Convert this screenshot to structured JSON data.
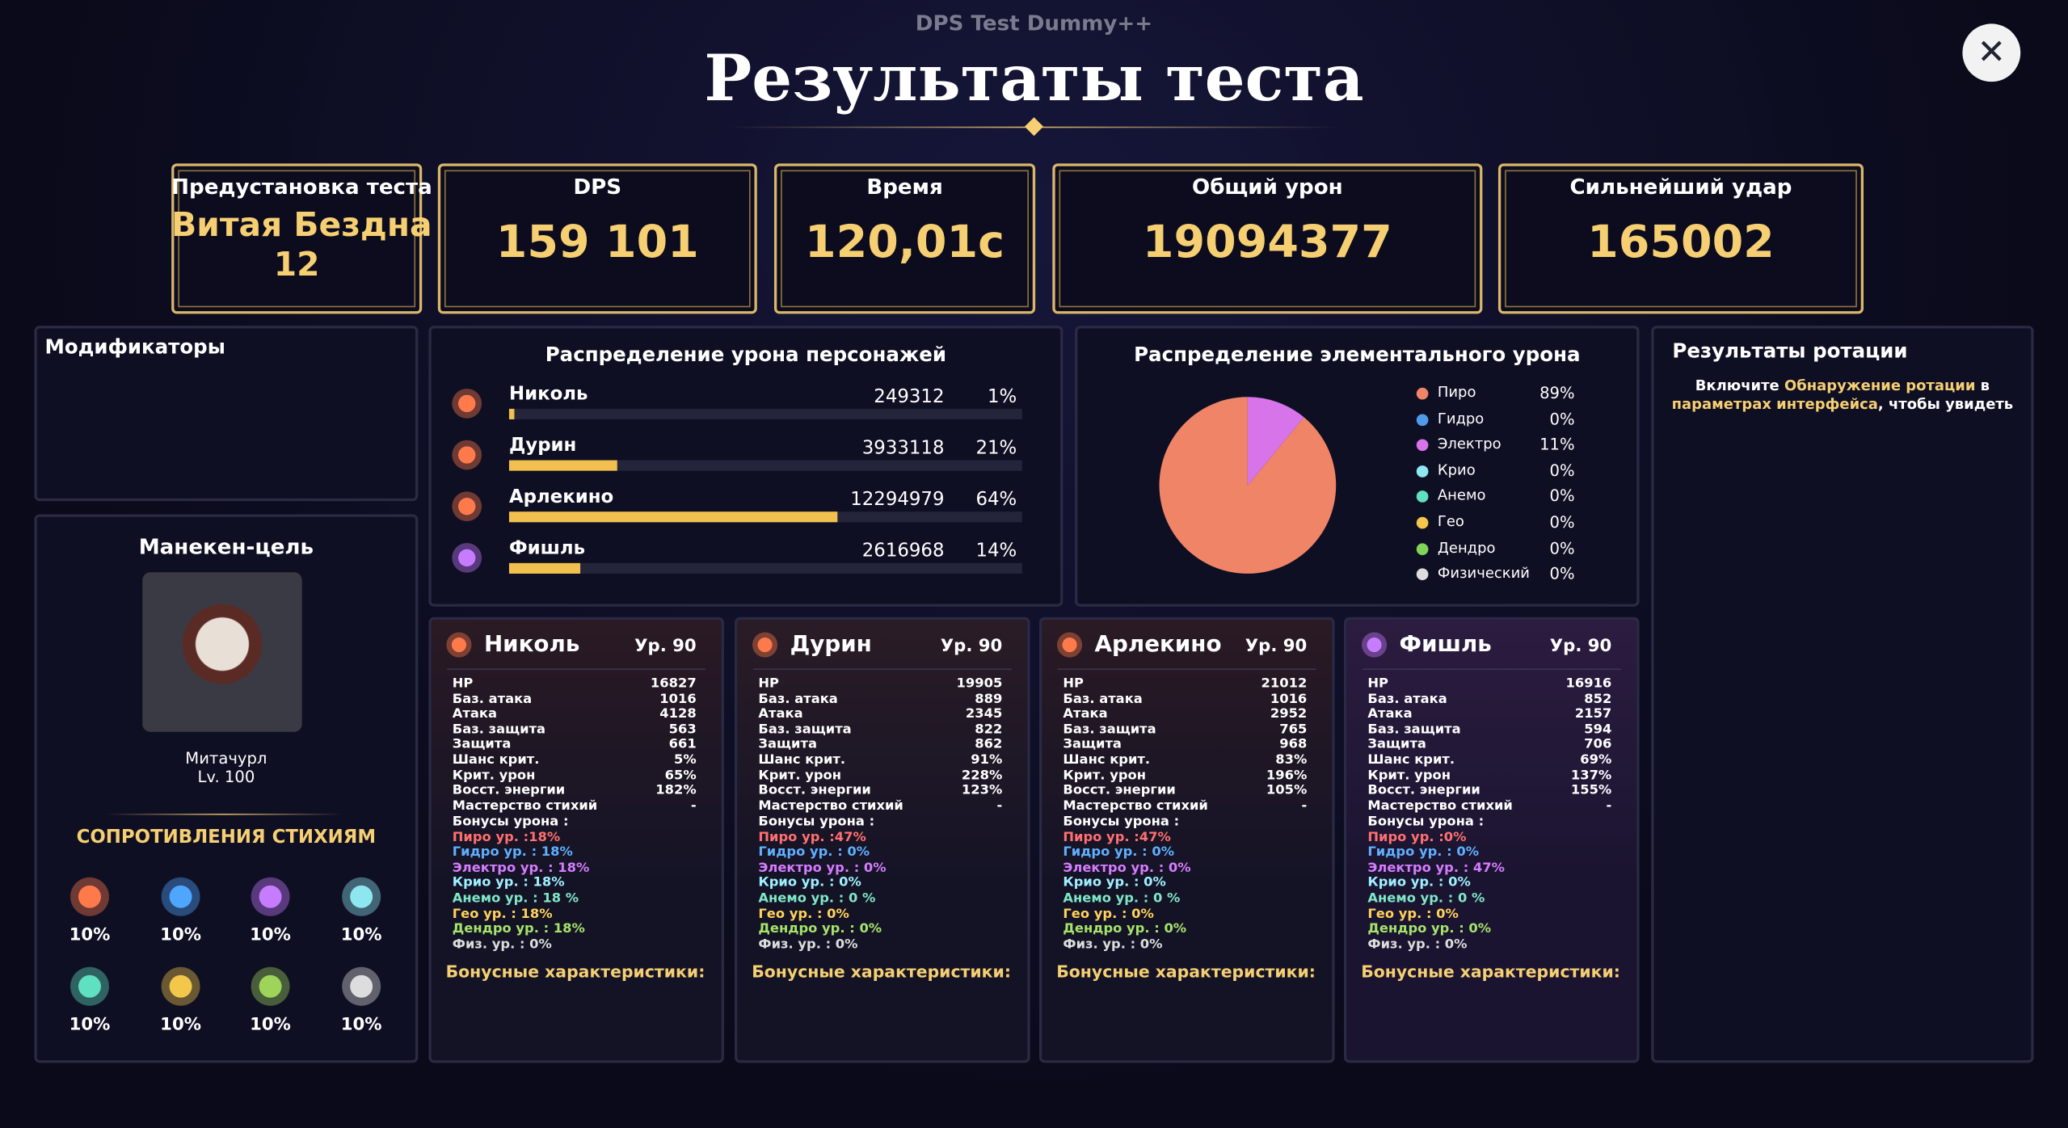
{
  "header": {
    "app": "DPS Test Dummy++",
    "title": "Результаты теста"
  },
  "stats": [
    {
      "label": "Предустановка теста",
      "value": "Витая Бездна",
      "sub": "12"
    },
    {
      "label": "DPS",
      "value": "159 101"
    },
    {
      "label": "Время",
      "value": "120,01с"
    },
    {
      "label": "Общий урон",
      "value": "19094377"
    },
    {
      "label": "Сильнейший удар",
      "value": "165002"
    }
  ],
  "modifiers": {
    "title": "Модификаторы"
  },
  "target": {
    "title": "Манекен-цель",
    "name": "Митачурл",
    "level": "Lv. 100",
    "res_title": "СОПРОТИВЛЕНИЯ СТИХИЯМ",
    "resistances": [
      "10%",
      "10%",
      "10%",
      "10%",
      "10%",
      "10%",
      "10%",
      "10%"
    ]
  },
  "char_damage": {
    "title": "Распределение урона персонажей",
    "rows": [
      {
        "name": "Николь",
        "damage": "249312",
        "share": 1,
        "share_label": "1%"
      },
      {
        "name": "Дурин",
        "damage": "3933118",
        "share": 21,
        "share_label": "21%"
      },
      {
        "name": "Арлекино",
        "damage": "12294979",
        "share": 64,
        "share_label": "64%"
      },
      {
        "name": "Фишль",
        "damage": "2616968",
        "share": 14,
        "share_label": "14%"
      }
    ]
  },
  "element_damage": {
    "title": "Распределение элементального урона",
    "series": [
      {
        "name": "Пиро",
        "color": "#ef8466",
        "value": 89,
        "label": "89%"
      },
      {
        "name": "Гидро",
        "color": "#4f9be8",
        "value": 0,
        "label": "0%"
      },
      {
        "name": "Электро",
        "color": "#d774ea",
        "value": 11,
        "label": "11%"
      },
      {
        "name": "Крио",
        "color": "#8ee6f0",
        "value": 0,
        "label": "0%"
      },
      {
        "name": "Анемо",
        "color": "#5fe0c0",
        "value": 0,
        "label": "0%"
      },
      {
        "name": "Гео",
        "color": "#f2c74a",
        "value": 0,
        "label": "0%"
      },
      {
        "name": "Дендро",
        "color": "#7fd45a",
        "value": 0,
        "label": "0%"
      },
      {
        "name": "Физический",
        "color": "#dddddd",
        "value": 0,
        "label": "0%"
      }
    ]
  },
  "rotation": {
    "title": "Результаты ротации",
    "text": [
      "Включите ",
      "Обнаружение ротации",
      " в ",
      "параметрах интерфейса",
      ", чтобы увидеть"
    ]
  },
  "cards": [
    {
      "name": "Николь",
      "level": "Ур. 90",
      "stats": [
        [
          "HP",
          "16827"
        ],
        [
          "Баз. атака",
          "1016"
        ],
        [
          "Атака",
          "4128"
        ],
        [
          "Баз. защита",
          "563"
        ],
        [
          "Защита",
          "661"
        ],
        [
          "Шанс крит.",
          "5%"
        ],
        [
          "Крит. урон",
          "65%"
        ],
        [
          "Восст. энергии",
          "182%"
        ],
        [
          "Мастерство стихий",
          "-"
        ]
      ],
      "bonus_title": "Бонусы урона :",
      "bonuses": [
        "Пиро ур. :18%",
        "Гидро ур. : 18%",
        "Электро ур. : 18%",
        "Крио ур. : 18%",
        "Анемо ур. : 18 %",
        "Гео ур. : 18%",
        "Дендро ур. : 18%",
        "Физ. ур. : 0%"
      ],
      "footer": "Бонусные характеристики:"
    },
    {
      "name": "Дурин",
      "level": "Ур. 90",
      "stats": [
        [
          "HP",
          "19905"
        ],
        [
          "Баз. атака",
          "889"
        ],
        [
          "Атака",
          "2345"
        ],
        [
          "Баз. защита",
          "822"
        ],
        [
          "Защита",
          "862"
        ],
        [
          "Шанс крит.",
          "91%"
        ],
        [
          "Крит. урон",
          "228%"
        ],
        [
          "Восст. энергии",
          "123%"
        ],
        [
          "Мастерство стихий",
          "-"
        ]
      ],
      "bonus_title": "Бонусы урона :",
      "bonuses": [
        "Пиро ур. :47%",
        "Гидро ур. : 0%",
        "Электро ур. : 0%",
        "Крио ур. : 0%",
        "Анемо ур. : 0 %",
        "Гео ур. : 0%",
        "Дендро ур. : 0%",
        "Физ. ур. : 0%"
      ],
      "footer": "Бонусные характеристики:"
    },
    {
      "name": "Арлекино",
      "level": "Ур. 90",
      "stats": [
        [
          "HP",
          "21012"
        ],
        [
          "Баз. атака",
          "1016"
        ],
        [
          "Атака",
          "2952"
        ],
        [
          "Баз. защита",
          "765"
        ],
        [
          "Защита",
          "968"
        ],
        [
          "Шанс крит.",
          "83%"
        ],
        [
          "Крит. урон",
          "196%"
        ],
        [
          "Восст. энергии",
          "105%"
        ],
        [
          "Мастерство стихий",
          "-"
        ]
      ],
      "bonus_title": "Бонусы урона :",
      "bonuses": [
        "Пиро ур. :47%",
        "Гидро ур. : 0%",
        "Электро ур. : 0%",
        "Крио ур. : 0%",
        "Анемо ур. : 0 %",
        "Гео ур. : 0%",
        "Дендро ур. : 0%",
        "Физ. ур. : 0%"
      ],
      "footer": "Бонусные характеристики:"
    },
    {
      "name": "Фишль",
      "level": "Ур. 90",
      "stats": [
        [
          "HP",
          "16916"
        ],
        [
          "Баз. атака",
          "852"
        ],
        [
          "Атака",
          "2157"
        ],
        [
          "Баз. защита",
          "594"
        ],
        [
          "Защита",
          "706"
        ],
        [
          "Шанс крит.",
          "69%"
        ],
        [
          "Крит. урон",
          "137%"
        ],
        [
          "Восст. энергии",
          "155%"
        ],
        [
          "Мастерство стихий",
          "-"
        ]
      ],
      "bonus_title": "Бонусы урона :",
      "bonuses": [
        "Пиро ур. :0%",
        "Гидро ур. : 0%",
        "Электро ур. : 47%",
        "Крио ур. : 0%",
        "Анемо ур. : 0 %",
        "Гео ур. : 0%",
        "Дендро ур. : 0%",
        "Физ. ур. : 0%"
      ],
      "footer": "Бонусные характеристики:"
    }
  ]
}
